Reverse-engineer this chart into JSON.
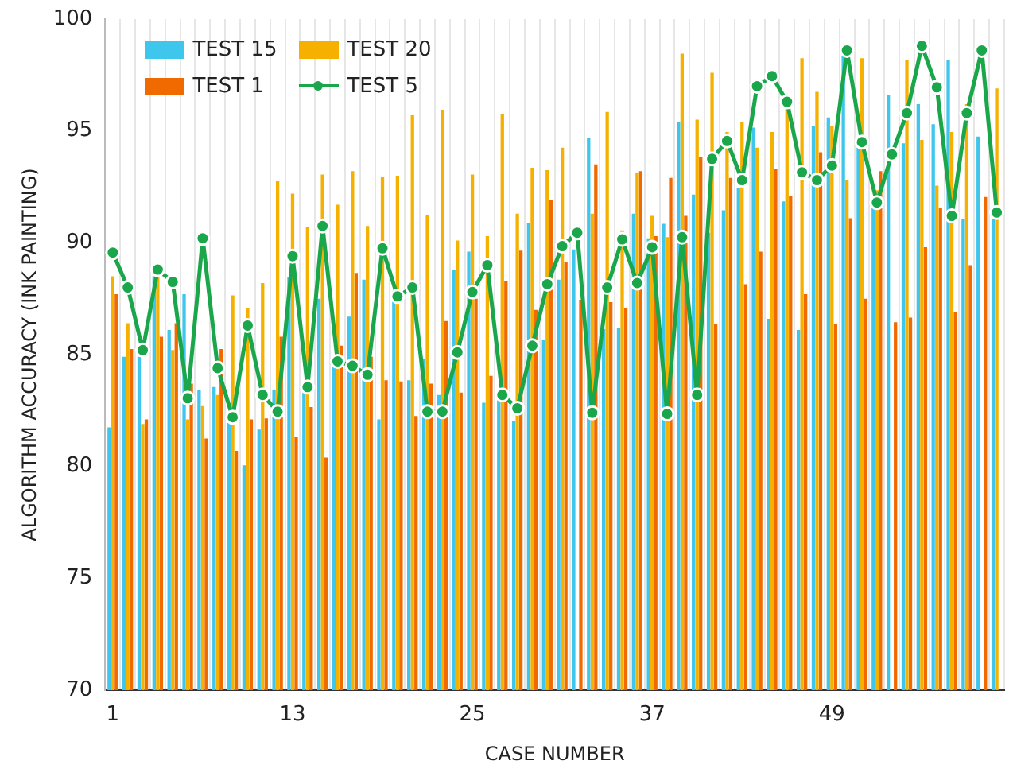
{
  "chart_data": {
    "type": "bar",
    "xlabel": "CASE NUMBER",
    "ylabel": "ALGORITHM ACCURACY (INK PAINTING)",
    "categories": [
      "1",
      null,
      null,
      null,
      null,
      null,
      null,
      null,
      null,
      null,
      null,
      null,
      "13",
      null,
      null,
      null,
      null,
      null,
      null,
      null,
      null,
      null,
      null,
      null,
      "25",
      null,
      null,
      null,
      null,
      null,
      null,
      null,
      null,
      null,
      null,
      null,
      "37",
      null,
      null,
      null,
      null,
      null,
      null,
      null,
      null,
      null,
      null,
      null,
      "49",
      null,
      null,
      null,
      null,
      null,
      null,
      null,
      null,
      null,
      null,
      null
    ],
    "ylim": [
      70,
      100
    ],
    "yticks": [
      70,
      75,
      80,
      85,
      90,
      95,
      100
    ],
    "grid": "x",
    "legend": "top left",
    "series": [
      {
        "name": "TEST 15",
        "color": "#3ec6ec",
        "values": [
          81.75,
          84.9,
          84.9,
          88.5,
          86.1,
          87.7,
          83.4,
          83.55,
          82.0,
          80.05,
          81.65,
          83.4,
          88.45,
          83.3,
          87.5,
          84.5,
          86.7,
          88.35,
          82.1,
          87.5,
          83.85,
          84.8,
          83.2,
          88.8,
          89.6,
          82.85,
          83.05,
          82.05,
          90.9,
          85.65,
          88.35,
          89.7,
          94.7,
          86.15,
          86.2,
          91.3,
          90.2,
          90.85,
          95.4,
          92.15,
          90.45,
          91.45,
          92.45,
          95.15,
          86.6,
          91.85,
          86.1,
          95.2,
          95.6,
          98.45,
          94.35,
          91.7,
          96.6,
          94.45,
          96.2,
          95.3,
          98.15,
          91.05,
          94.75,
          91.05
        ]
      },
      {
        "name": "TEST 20",
        "color": "#f5b000",
        "values": [
          88.5,
          86.4,
          81.9,
          88.45,
          85.2,
          82.1,
          82.7,
          83.2,
          87.65,
          87.1,
          88.2,
          92.75,
          92.2,
          90.7,
          93.05,
          91.7,
          93.2,
          90.75,
          92.95,
          93.0,
          95.7,
          91.25,
          95.95,
          90.1,
          93.05,
          90.3,
          95.75,
          91.3,
          93.35,
          93.25,
          94.25,
          null,
          91.3,
          95.85,
          90.55,
          93.1,
          91.2,
          90.25,
          98.45,
          95.5,
          97.6,
          94.95,
          95.4,
          94.25,
          94.95,
          96.0,
          98.25,
          96.75,
          95.2,
          92.8,
          98.25,
          92.35,
          null,
          98.15,
          94.6,
          92.55,
          94.95,
          96.2,
          null,
          96.9
        ]
      },
      {
        "name": "TEST 1",
        "color": "#f06a00",
        "values": [
          87.7,
          85.25,
          82.1,
          85.8,
          86.4,
          83.7,
          81.25,
          85.25,
          80.7,
          82.1,
          82.15,
          85.8,
          81.3,
          82.65,
          80.4,
          85.4,
          88.65,
          84.9,
          83.85,
          83.8,
          82.25,
          83.7,
          86.5,
          83.3,
          87.5,
          84.05,
          88.3,
          89.65,
          87.0,
          91.9,
          89.15,
          87.45,
          93.5,
          87.35,
          87.1,
          93.2,
          90.3,
          92.9,
          91.2,
          93.85,
          86.35,
          92.9,
          88.15,
          89.6,
          93.3,
          92.1,
          87.7,
          94.05,
          86.35,
          91.1,
          87.5,
          93.2,
          86.45,
          86.65,
          89.8,
          91.55,
          86.9,
          89.0,
          92.05,
          null
        ]
      },
      {
        "name": "TEST 5",
        "type": "line",
        "color": "#1aa64a",
        "marker": "circle",
        "line_style": "solid",
        "values": [
          89.56,
          88.0,
          85.2,
          88.8,
          88.25,
          83.05,
          90.2,
          84.4,
          82.2,
          86.3,
          83.2,
          82.45,
          89.4,
          83.55,
          90.75,
          84.7,
          84.5,
          84.1,
          89.75,
          87.6,
          88.0,
          82.45,
          82.45,
          85.1,
          87.8,
          89.0,
          83.2,
          82.6,
          85.4,
          88.15,
          89.85,
          90.45,
          82.4,
          88.0,
          90.15,
          88.2,
          89.8,
          82.35,
          90.25,
          83.2,
          93.75,
          94.55,
          92.8,
          97.0,
          97.45,
          96.3,
          93.15,
          92.8,
          93.45,
          98.6,
          94.5,
          91.8,
          93.95,
          95.8,
          98.8,
          96.95,
          91.2,
          95.8,
          98.6,
          91.35
        ]
      }
    ]
  }
}
